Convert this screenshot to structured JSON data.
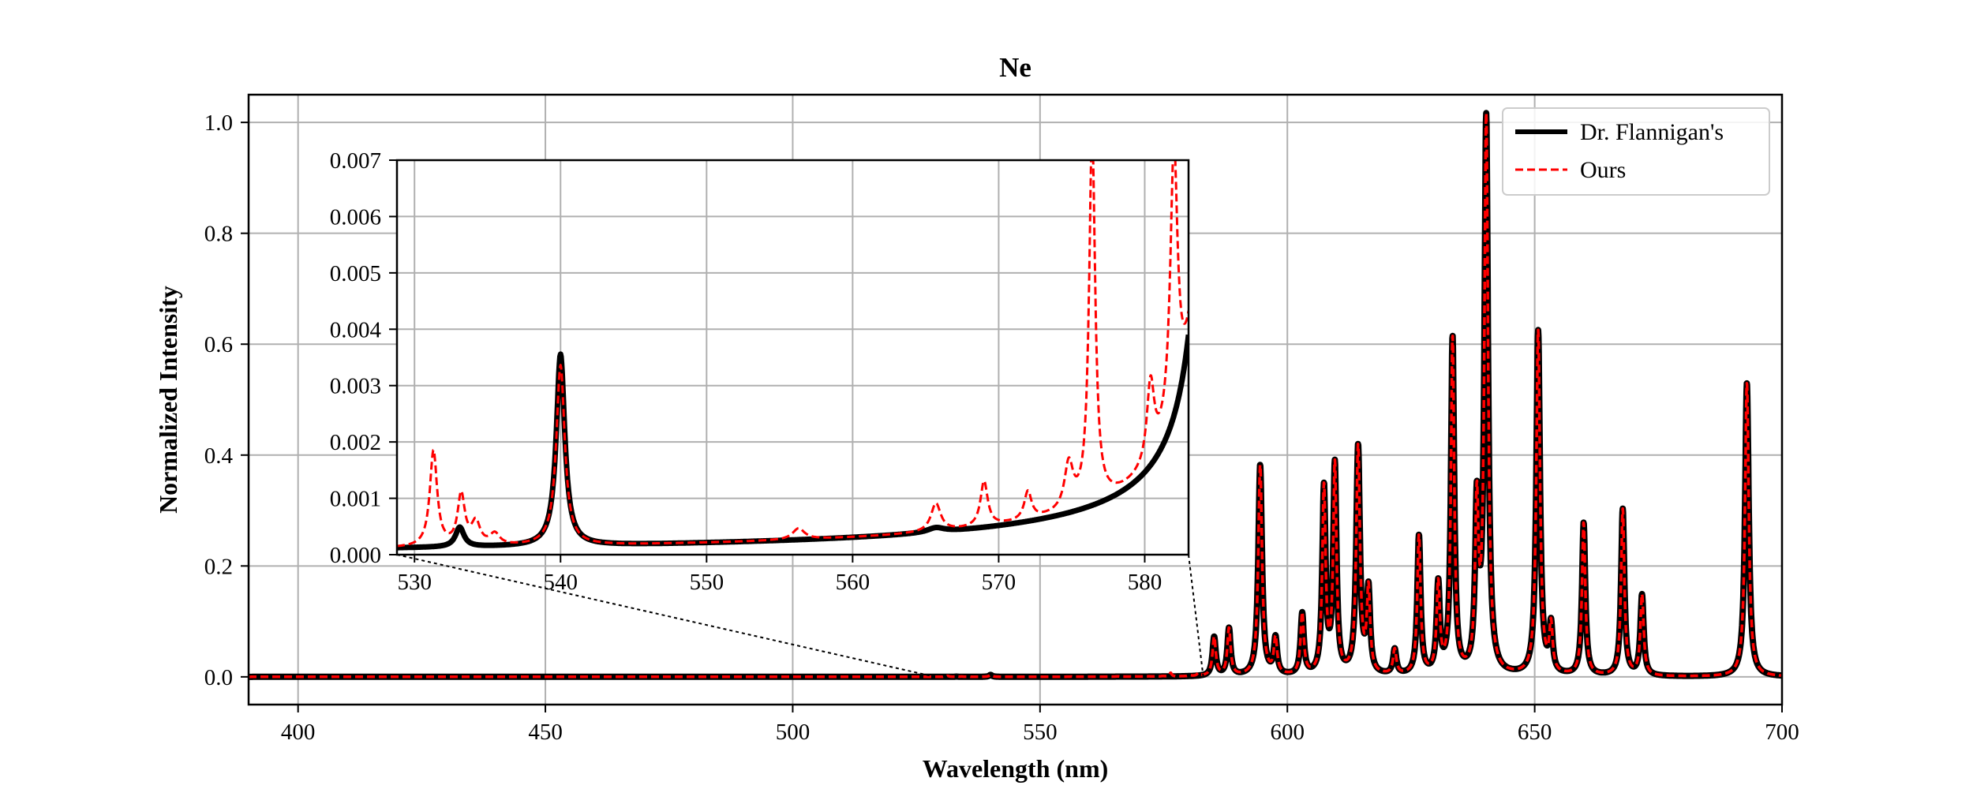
{
  "chart_data": {
    "type": "line",
    "title": "Ne",
    "xlabel": "Wavelength (nm)",
    "ylabel": "Normalized Intensity",
    "xlim": [
      390,
      700
    ],
    "ylim": [
      -0.05,
      1.05
    ],
    "x_ticks": [
      400,
      450,
      500,
      550,
      600,
      650,
      700
    ],
    "y_ticks": [
      0.0,
      0.2,
      0.4,
      0.6,
      0.8,
      1.0
    ],
    "x_tick_labels": [
      "400",
      "450",
      "500",
      "550",
      "600",
      "650",
      "700"
    ],
    "y_tick_labels": [
      "0.0",
      "0.2",
      "0.4",
      "0.6",
      "0.8",
      "1.0"
    ],
    "grid": true,
    "legend_position": "top-right",
    "colors": {
      "ref": "#000000",
      "ours": "#ff0000",
      "grid": "#b0b0b0"
    },
    "series": [
      {
        "name": "Dr. Flannigan's",
        "style": "solid",
        "peaks": [
          [
            533.1,
            0.00035,
            0.35
          ],
          [
            540.0,
            0.0034,
            0.35
          ],
          [
            565.7,
            8e-05,
            0.7
          ],
          [
            585.2,
            0.07,
            0.4
          ],
          [
            588.2,
            0.085,
            0.4
          ],
          [
            594.5,
            0.38,
            0.45
          ],
          [
            597.6,
            0.065,
            0.4
          ],
          [
            603.0,
            0.11,
            0.4
          ],
          [
            607.4,
            0.335,
            0.4
          ],
          [
            609.6,
            0.375,
            0.4
          ],
          [
            614.3,
            0.41,
            0.45
          ],
          [
            616.4,
            0.15,
            0.4
          ],
          [
            621.7,
            0.045,
            0.4
          ],
          [
            626.6,
            0.25,
            0.4
          ],
          [
            630.5,
            0.16,
            0.4
          ],
          [
            633.4,
            0.605,
            0.4
          ],
          [
            638.3,
            0.295,
            0.4
          ],
          [
            640.2,
            1.0,
            0.45
          ],
          [
            650.7,
            0.62,
            0.45
          ],
          [
            653.3,
            0.085,
            0.4
          ],
          [
            659.9,
            0.275,
            0.4
          ],
          [
            667.8,
            0.3,
            0.4
          ],
          [
            671.7,
            0.145,
            0.4
          ],
          [
            692.9,
            0.53,
            0.45
          ]
        ]
      },
      {
        "name": "Ours",
        "style": "dashed",
        "peaks": [
          [
            531.3,
            0.0017,
            0.3
          ],
          [
            533.2,
            0.0009,
            0.3
          ],
          [
            534.2,
            0.0004,
            0.35
          ],
          [
            535.5,
            0.0002,
            0.4
          ],
          [
            540.0,
            0.0032,
            0.35
          ],
          [
            556.3,
            0.0002,
            0.5
          ],
          [
            565.7,
            0.0005,
            0.4
          ],
          [
            569.0,
            0.0008,
            0.3
          ],
          [
            572.0,
            0.0005,
            0.3
          ],
          [
            574.8,
            0.0008,
            0.35
          ],
          [
            576.4,
            0.0066,
            0.25
          ],
          [
            580.4,
            0.0014,
            0.3
          ],
          [
            582.0,
            0.0048,
            0.3
          ],
          [
            585.2,
            0.07,
            0.4
          ],
          [
            588.2,
            0.085,
            0.4
          ],
          [
            594.5,
            0.38,
            0.45
          ],
          [
            597.6,
            0.065,
            0.4
          ],
          [
            603.0,
            0.11,
            0.4
          ],
          [
            607.4,
            0.335,
            0.4
          ],
          [
            609.6,
            0.375,
            0.4
          ],
          [
            614.3,
            0.41,
            0.45
          ],
          [
            616.4,
            0.15,
            0.4
          ],
          [
            621.7,
            0.045,
            0.4
          ],
          [
            626.6,
            0.25,
            0.4
          ],
          [
            630.5,
            0.16,
            0.4
          ],
          [
            633.4,
            0.605,
            0.4
          ],
          [
            638.3,
            0.295,
            0.4
          ],
          [
            640.2,
            1.0,
            0.45
          ],
          [
            650.7,
            0.62,
            0.45
          ],
          [
            653.3,
            0.085,
            0.4
          ],
          [
            659.9,
            0.275,
            0.4
          ],
          [
            667.8,
            0.3,
            0.4
          ],
          [
            671.7,
            0.145,
            0.4
          ],
          [
            692.9,
            0.53,
            0.45
          ]
        ]
      }
    ],
    "inset": {
      "xlim": [
        528.8,
        583
      ],
      "ylim": [
        0,
        0.007
      ],
      "x_ticks": [
        530,
        540,
        550,
        560,
        570,
        580
      ],
      "y_ticks": [
        0.0,
        0.001,
        0.002,
        0.003,
        0.004,
        0.005,
        0.006,
        0.007
      ],
      "x_tick_labels": [
        "530",
        "540",
        "550",
        "560",
        "570",
        "580"
      ],
      "y_tick_labels": [
        "0.000",
        "0.001",
        "0.002",
        "0.003",
        "0.004",
        "0.005",
        "0.006",
        "0.007"
      ],
      "grid": true
    }
  }
}
